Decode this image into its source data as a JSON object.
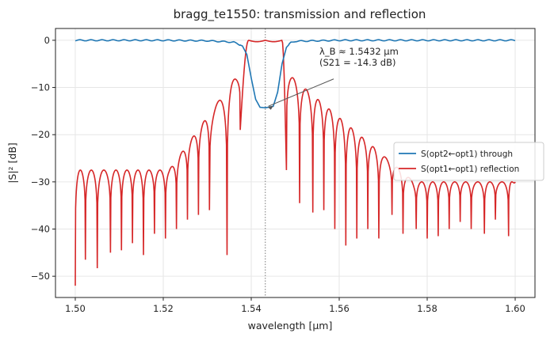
{
  "chart_data": {
    "type": "line",
    "title": "bragg_te1550: transmission and reflection",
    "xlabel": "wavelength [µm]",
    "ylabel": "|S|² [dB]",
    "xlim": [
      1.4955,
      1.6045
    ],
    "ylim": [
      -54.5,
      2.5
    ],
    "xticks": [
      1.5,
      1.52,
      1.54,
      1.56,
      1.58,
      1.6
    ],
    "xtick_labels": [
      "1.50",
      "1.52",
      "1.54",
      "1.56",
      "1.58",
      "1.60"
    ],
    "yticks": [
      0,
      -10,
      -20,
      -30,
      -40,
      -50
    ],
    "ytick_labels": [
      "0",
      "−10",
      "−20",
      "−30",
      "−40",
      "−50"
    ],
    "grid": true,
    "legend_position": "center-right",
    "bragg_wavelength": 1.5432,
    "annotation": {
      "line1": "λ_B ≈ 1.5432 µm",
      "line2": "(S21 = -14.3 dB)",
      "x": 1.5432,
      "y": -14.3,
      "text_x": 1.5555,
      "text_y": -4.5
    },
    "series": [
      {
        "name": "S(opt2←opt1) through",
        "color": "#1f77b4",
        "x": [
          1.5,
          1.51,
          1.52,
          1.53,
          1.536,
          1.538,
          1.539,
          1.54,
          1.541,
          1.542,
          1.5432,
          1.545,
          1.546,
          1.547,
          1.548,
          1.549,
          1.55,
          1.56,
          1.58,
          1.6
        ],
        "values": [
          0.0,
          0.0,
          0.0,
          -0.1,
          -0.4,
          -1.2,
          -3.0,
          -8.0,
          -12.5,
          -14.2,
          -14.3,
          -14.0,
          -11.0,
          -5.0,
          -1.5,
          -0.5,
          -0.2,
          0.0,
          0.0,
          0.0
        ]
      },
      {
        "name": "S(opt1←opt1) reflection",
        "color": "#d62728",
        "x_start": 1.5,
        "x_end": 1.6,
        "band_center": 1.5432,
        "band_edges": [
          1.5394,
          1.547
        ],
        "values_at": [
          {
            "x": 1.5,
            "y": -52
          },
          {
            "x": 1.5011,
            "y": -27
          },
          {
            "x": 1.5438,
            "y": 0.0
          },
          {
            "x": 1.56,
            "y": -21
          },
          {
            "x": 1.6,
            "y": -30
          }
        ],
        "nulls": [
          {
            "x": 1.5023,
            "y": -46.5
          },
          {
            "x": 1.505,
            "y": -48.3
          },
          {
            "x": 1.508,
            "y": -45
          },
          {
            "x": 1.5105,
            "y": -44.5
          },
          {
            "x": 1.513,
            "y": -43
          },
          {
            "x": 1.5155,
            "y": -45.5
          },
          {
            "x": 1.518,
            "y": -41
          },
          {
            "x": 1.5205,
            "y": -42
          },
          {
            "x": 1.523,
            "y": -40
          },
          {
            "x": 1.5255,
            "y": -38
          },
          {
            "x": 1.528,
            "y": -37
          },
          {
            "x": 1.5305,
            "y": -36
          },
          {
            "x": 1.5345,
            "y": -45.5
          },
          {
            "x": 1.5375,
            "y": -19
          },
          {
            "x": 1.54,
            "y": -23.5
          },
          {
            "x": 1.548,
            "y": -27.5
          },
          {
            "x": 1.551,
            "y": -34.5
          },
          {
            "x": 1.554,
            "y": -36.5
          },
          {
            "x": 1.5565,
            "y": -36
          },
          {
            "x": 1.559,
            "y": -40
          },
          {
            "x": 1.5615,
            "y": -43.5
          },
          {
            "x": 1.564,
            "y": -42
          },
          {
            "x": 1.5665,
            "y": -40
          },
          {
            "x": 1.569,
            "y": -42
          },
          {
            "x": 1.572,
            "y": -37
          },
          {
            "x": 1.5745,
            "y": -41
          },
          {
            "x": 1.5775,
            "y": -40
          },
          {
            "x": 1.58,
            "y": -42
          },
          {
            "x": 1.5825,
            "y": -41.5
          },
          {
            "x": 1.585,
            "y": -40
          },
          {
            "x": 1.5875,
            "y": -38.5
          },
          {
            "x": 1.59,
            "y": -40
          },
          {
            "x": 1.593,
            "y": -41
          },
          {
            "x": 1.5955,
            "y": -38
          },
          {
            "x": 1.5985,
            "y": -41.5
          }
        ]
      }
    ]
  }
}
